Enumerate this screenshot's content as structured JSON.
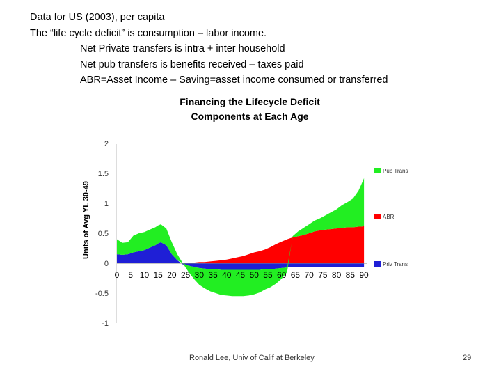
{
  "slide": {
    "lines": [
      "Data for US (2003), per capita",
      "The “life cycle deficit” is consumption – labor income.",
      "Net Private transfers is intra + inter household",
      "Net pub transfers is benefits received – taxes paid",
      "ABR=Asset Income – Saving=asset income consumed or transferred"
    ],
    "footer": "Ronald Lee, Univ of Calif at Berkeley",
    "page_number": "29"
  },
  "chart_data": {
    "type": "area",
    "title": "Financing the Lifecycle Deficit",
    "subtitle": "Components at Each Age",
    "ylabel": "Units of Avg YL 30-49",
    "xlabel": "",
    "ylim": [
      -1,
      2
    ],
    "y_ticks": [
      "2",
      "1.5",
      "1",
      "0.5",
      "0",
      "-0.5",
      "-1"
    ],
    "x_ticks": [
      "0",
      "5",
      "10",
      "15",
      "20",
      "25",
      "30",
      "35",
      "40",
      "45",
      "50",
      "55",
      "60",
      "65",
      "70",
      "75",
      "80",
      "85",
      "90"
    ],
    "grid": false,
    "legend_position": "right",
    "x": [
      0,
      2,
      4,
      6,
      8,
      10,
      12,
      14,
      15,
      16,
      18,
      20,
      22,
      24,
      26,
      28,
      30,
      32,
      34,
      36,
      38,
      40,
      42,
      44,
      46,
      48,
      50,
      52,
      54,
      56,
      58,
      60,
      62,
      64,
      66,
      68,
      70,
      72,
      74,
      76,
      78,
      80,
      82,
      84,
      86,
      88,
      89,
      90
    ],
    "series": [
      {
        "name": "Priv Trans",
        "color": "#1f1fd6",
        "values": [
          0.15,
          0.14,
          0.15,
          0.18,
          0.2,
          0.22,
          0.26,
          0.3,
          0.33,
          0.35,
          0.3,
          0.15,
          0.05,
          -0.02,
          -0.04,
          -0.06,
          -0.08,
          -0.09,
          -0.1,
          -0.1,
          -0.11,
          -0.11,
          -0.11,
          -0.11,
          -0.11,
          -0.11,
          -0.11,
          -0.11,
          -0.1,
          -0.1,
          -0.09,
          -0.08,
          -0.07,
          -0.06,
          -0.06,
          -0.06,
          -0.06,
          -0.06,
          -0.06,
          -0.06,
          -0.06,
          -0.06,
          -0.06,
          -0.06,
          -0.06,
          -0.06,
          -0.06,
          -0.06
        ]
      },
      {
        "name": "ABR",
        "color": "#ff0000",
        "values": [
          0,
          0,
          0,
          0,
          0,
          0,
          0,
          0,
          0,
          0,
          0,
          0,
          0,
          0,
          0.01,
          0.01,
          0.02,
          0.02,
          0.03,
          0.04,
          0.05,
          0.06,
          0.08,
          0.1,
          0.12,
          0.15,
          0.18,
          0.2,
          0.23,
          0.27,
          0.32,
          0.36,
          0.4,
          0.43,
          0.45,
          0.47,
          0.5,
          0.53,
          0.55,
          0.56,
          0.57,
          0.58,
          0.59,
          0.6,
          0.6,
          0.61,
          0.61,
          0.62
        ]
      },
      {
        "name": "Pub Trans",
        "color": "#22ee22",
        "values": [
          0.25,
          0.2,
          0.2,
          0.28,
          0.3,
          0.3,
          0.3,
          0.3,
          0.3,
          0.3,
          0.28,
          0.2,
          0.1,
          0,
          -0.1,
          -0.2,
          -0.28,
          -0.33,
          -0.37,
          -0.4,
          -0.42,
          -0.43,
          -0.44,
          -0.44,
          -0.44,
          -0.43,
          -0.41,
          -0.38,
          -0.34,
          -0.3,
          -0.25,
          -0.18,
          -0.08,
          0.02,
          0.08,
          0.12,
          0.15,
          0.18,
          0.2,
          0.24,
          0.28,
          0.32,
          0.38,
          0.42,
          0.48,
          0.6,
          0.7,
          0.8
        ]
      }
    ]
  }
}
